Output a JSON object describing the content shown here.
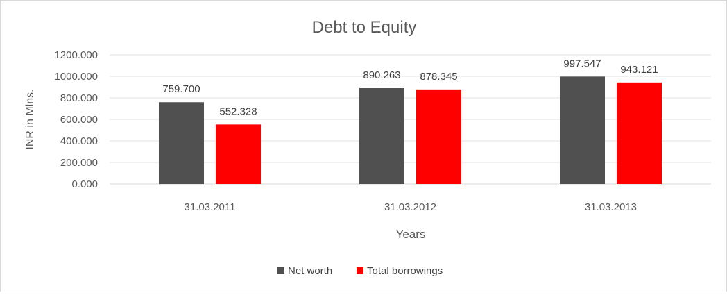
{
  "chart_data": {
    "type": "bar",
    "title": "Debt to Equity",
    "xlabel": "Years",
    "ylabel": "INR in Mlns.",
    "categories": [
      "31.03.2011",
      "31.03.2012",
      "31.03.2013"
    ],
    "series": [
      {
        "name": "Net worth",
        "color": "#505050",
        "values": [
          759.7,
          890.263,
          997.547
        ],
        "labels": [
          "759.700",
          "890.263",
          "997.547"
        ]
      },
      {
        "name": "Total borrowings",
        "color": "#ff0000",
        "values": [
          552.328,
          878.345,
          943.121
        ],
        "labels": [
          "552.328",
          "878.345",
          "943.121"
        ]
      }
    ],
    "ylim": [
      0,
      1200
    ],
    "yticks": [
      0,
      200,
      400,
      600,
      800,
      1000,
      1200
    ],
    "ytick_labels": [
      "0.000",
      "200.000",
      "400.000",
      "600.000",
      "800.000",
      "1000.000",
      "1200.000"
    ],
    "grid": true,
    "legend_position": "bottom"
  }
}
